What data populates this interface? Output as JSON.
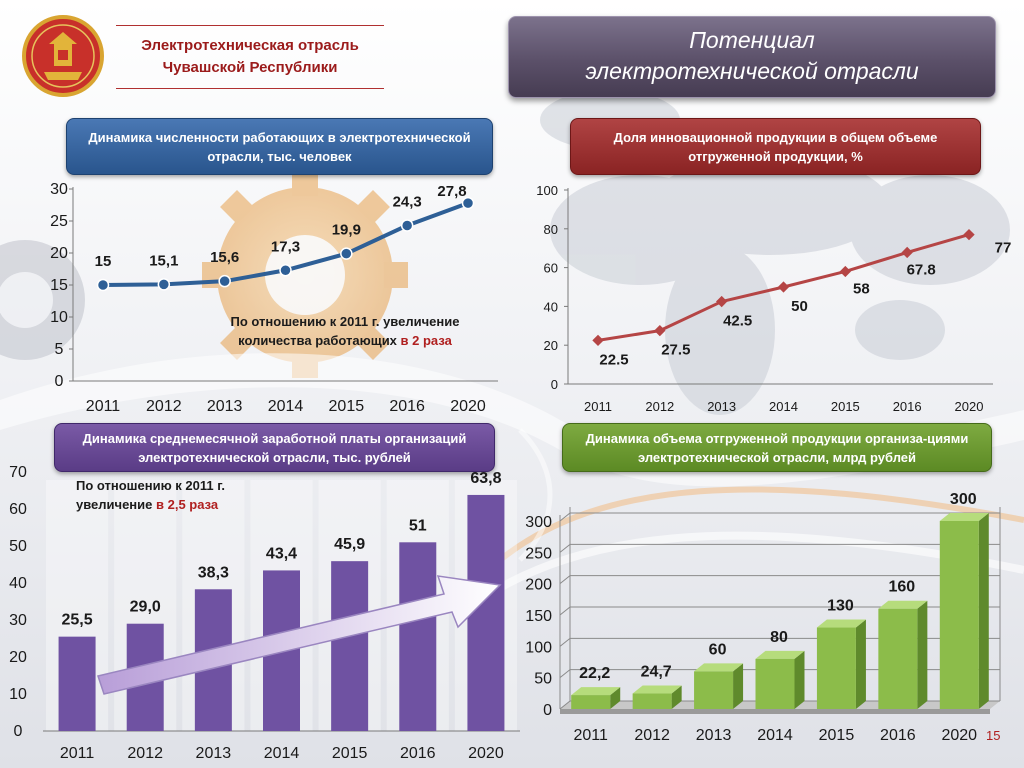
{
  "header": {
    "org_line1": "Электротехническая отрасль",
    "org_line2": "Чувашской Республики",
    "title_line1": "Потенциал",
    "title_line2": "электротехнической отрасли"
  },
  "page_number": "15",
  "colors": {
    "blue": "#29558d",
    "red": "#9e2d2d",
    "purple": "#6f52a2",
    "green": "#8cbc4a",
    "line_blue": "#2e5f96",
    "line_red": "#b54545"
  },
  "notes": {
    "employees_text": "По отношению к 2011 г. увеличение количества работающих",
    "employees_highlight": "в 2  раза",
    "salary_text": "По отношению к 2011 г. увеличение",
    "salary_highlight": "в 2,5 раза"
  },
  "chart_data": [
    {
      "type": "line",
      "title": "Динамика численности работающих в электротехнической отрасли, тыс. человек",
      "categories": [
        "2011",
        "2012",
        "2013",
        "2014",
        "2015",
        "2016",
        "2020"
      ],
      "series": [
        {
          "values": [
            15,
            15.1,
            15.6,
            17.3,
            19.9,
            24.3,
            27.8
          ]
        }
      ],
      "data_labels": [
        "15",
        "15,1",
        "15,6",
        "17,3",
        "19,9",
        "24,3",
        "27,8"
      ],
      "y_ticks": [
        "0",
        "5",
        "10",
        "15",
        "20",
        "25",
        "30"
      ],
      "ylim": [
        0,
        30
      ],
      "grid": false
    },
    {
      "type": "line",
      "title": "Доля инновационной продукции в общем объеме отгруженной продукции, %",
      "categories": [
        "2011",
        "2012",
        "2013",
        "2014",
        "2015",
        "2016",
        "2020"
      ],
      "series": [
        {
          "values": [
            22.5,
            27.5,
            42.5,
            50,
            58,
            67.8,
            77
          ]
        }
      ],
      "data_labels": [
        "22.5",
        "27.5",
        "42.5",
        "50",
        "58",
        "67.8",
        "77"
      ],
      "y_ticks": [
        "0",
        "20",
        "40",
        "60",
        "80",
        "100"
      ],
      "ylim": [
        0,
        100
      ],
      "grid": false
    },
    {
      "type": "bar",
      "title": "Динамика среднемесячной заработной платы организаций электротехнической отрасли, тыс. рублей",
      "categories": [
        "2011",
        "2012",
        "2013",
        "2014",
        "2015",
        "2016",
        "2020"
      ],
      "series": [
        {
          "values": [
            25.5,
            29.0,
            38.3,
            43.4,
            45.9,
            51,
            63.8
          ]
        }
      ],
      "data_labels": [
        "25,5",
        "29,0",
        "38,3",
        "43,4",
        "45,9",
        "51",
        "63,8"
      ],
      "y_ticks": [
        "0",
        "10",
        "20",
        "30",
        "40",
        "50",
        "60",
        "70"
      ],
      "ylim": [
        0,
        70
      ],
      "grid": false
    },
    {
      "type": "bar",
      "title": "Динамика объема отгруженной продукции организа-циями электротехнической отрасли, млрд рублей",
      "categories": [
        "2011",
        "2012",
        "2013",
        "2014",
        "2015",
        "2016",
        "2020"
      ],
      "series": [
        {
          "values": [
            22.2,
            24.7,
            60,
            80,
            130,
            160,
            300
          ]
        }
      ],
      "data_labels": [
        "22,2",
        "24,7",
        "60",
        "80",
        "130",
        "160",
        "300"
      ],
      "y_ticks": [
        "0",
        "50",
        "100",
        "150",
        "200",
        "250",
        "300"
      ],
      "ylim": [
        0,
        300
      ],
      "grid": true
    }
  ]
}
